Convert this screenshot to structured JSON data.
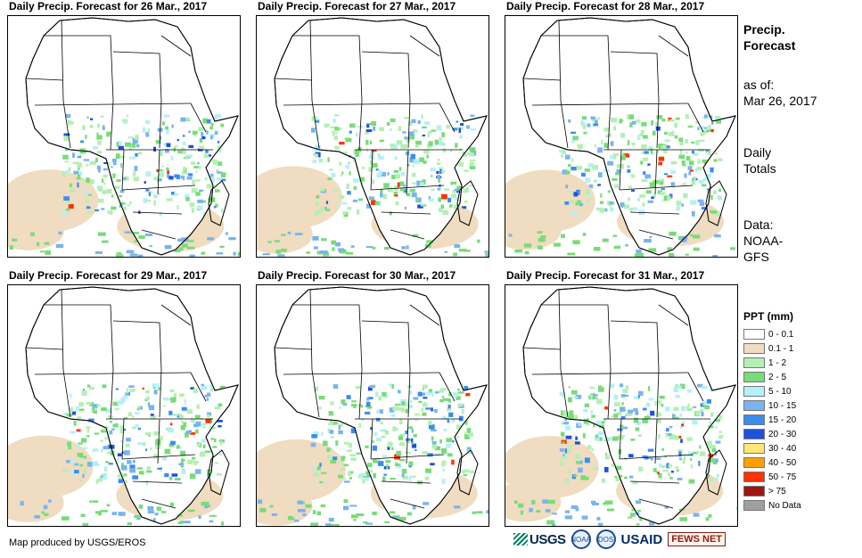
{
  "panels": [
    {
      "title": "Daily Precip. Forecast for 26 Mar., 2017"
    },
    {
      "title": "Daily Precip. Forecast for 27 Mar., 2017"
    },
    {
      "title": "Daily Precip. Forecast for 28 Mar., 2017"
    },
    {
      "title": "Daily Precip. Forecast for 29 Mar., 2017"
    },
    {
      "title": "Daily Precip. Forecast for 30 Mar., 2017"
    },
    {
      "title": "Daily Precip. Forecast for 31 Mar., 2017"
    }
  ],
  "sidebar": {
    "heading1": "Precip.",
    "heading2": "Forecast",
    "asof_label": "as of:",
    "asof_date": "Mar 26, 2017",
    "totals1": "Daily",
    "totals2": "Totals",
    "data1": "Data:",
    "data2": "NOAA-",
    "data3": "GFS"
  },
  "legend": {
    "title": "PPT (mm)",
    "items": [
      {
        "label": "0 - 0.1",
        "color": "#ffffff"
      },
      {
        "label": "0.1 - 1",
        "color": "#f0dcc0"
      },
      {
        "label": "1 - 2",
        "color": "#b4f0b4"
      },
      {
        "label": "2 - 5",
        "color": "#78dc78"
      },
      {
        "label": "5 - 10",
        "color": "#b4f0fa"
      },
      {
        "label": "10 - 15",
        "color": "#78b4f0"
      },
      {
        "label": "15 - 20",
        "color": "#3c8cf0"
      },
      {
        "label": "20 - 30",
        "color": "#1e50dc"
      },
      {
        "label": "30 - 40",
        "color": "#ffe678"
      },
      {
        "label": "40 - 50",
        "color": "#ffa000"
      },
      {
        "label": "50 - 75",
        "color": "#ff3200"
      },
      {
        "label": "> 75",
        "color": "#a01414"
      },
      {
        "label": "No Data",
        "color": "#a0a0a0"
      }
    ]
  },
  "footer": {
    "credit": "Map produced by USGS/EROS"
  },
  "logos": {
    "usgs": "USGS",
    "noaa": "NOAA",
    "dos": "DOS",
    "usaid": "USAID",
    "fews": "FEWS NET"
  }
}
